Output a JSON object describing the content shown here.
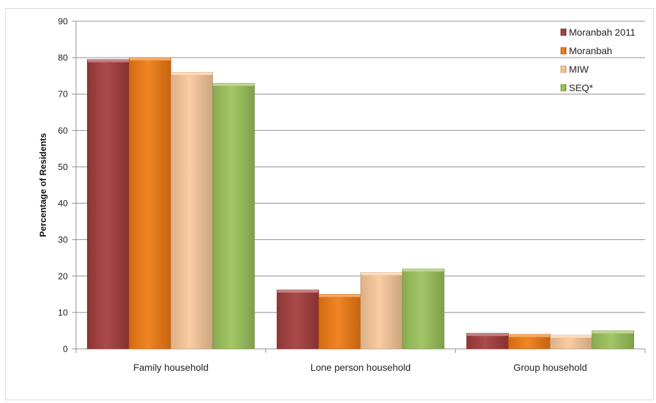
{
  "chart_data": {
    "type": "bar",
    "title": "",
    "xlabel": "",
    "ylabel": "Percentage of Residents",
    "ylim": [
      0,
      90
    ],
    "yticks": [
      0,
      10,
      20,
      30,
      40,
      50,
      60,
      70,
      80,
      90
    ],
    "grid": true,
    "legend_position": "top-right",
    "categories": [
      "Family household",
      "Lone person household",
      "Group household"
    ],
    "series": [
      {
        "name": "Moranbah 2011",
        "color": "#a33b3b",
        "values": [
          79.5,
          16.2,
          4.3
        ]
      },
      {
        "name": "Moranbah",
        "color": "#f07a12",
        "values": [
          80,
          15,
          4
        ]
      },
      {
        "name": "MIW",
        "color": "#fac89a",
        "values": [
          76,
          21,
          3.8
        ]
      },
      {
        "name": "SEQ*",
        "color": "#9bc25a",
        "values": [
          73,
          22,
          5
        ]
      }
    ]
  }
}
